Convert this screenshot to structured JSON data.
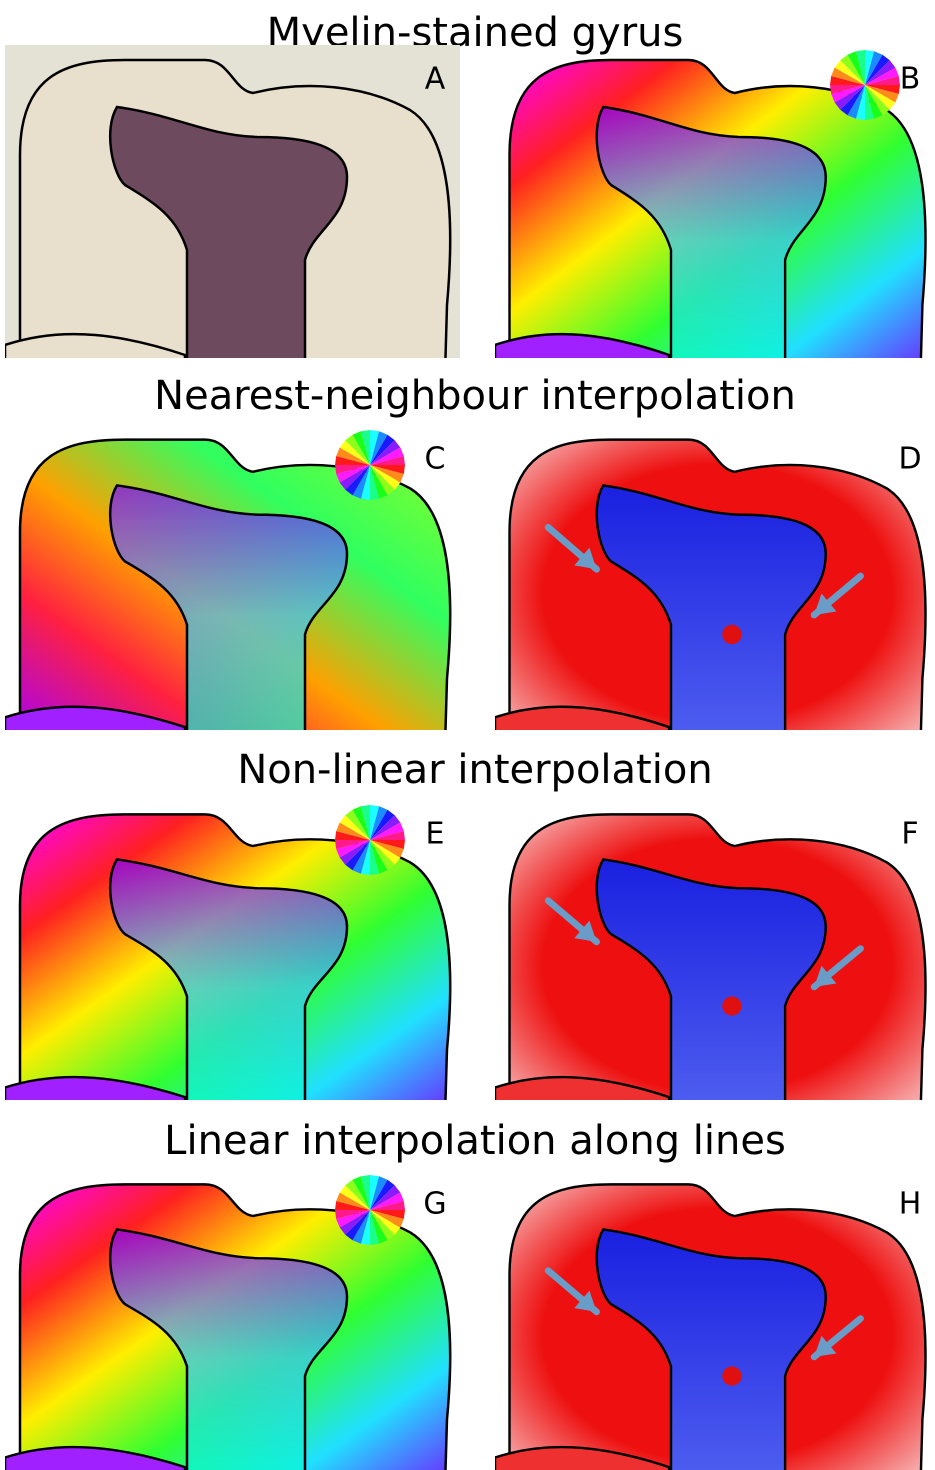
{
  "sections": [
    {
      "title": "Myelin-stained gyrus",
      "panels": [
        {
          "label": "A"
        },
        {
          "label": "B"
        }
      ]
    },
    {
      "title": "Nearest-neighbour interpolation",
      "panels": [
        {
          "label": "C"
        },
        {
          "label": "D"
        }
      ]
    },
    {
      "title": "Non-linear interpolation",
      "panels": [
        {
          "label": "E"
        },
        {
          "label": "F"
        }
      ]
    },
    {
      "title": "Linear interpolation along lines",
      "panels": [
        {
          "label": "G"
        },
        {
          "label": "H"
        }
      ]
    }
  ]
}
